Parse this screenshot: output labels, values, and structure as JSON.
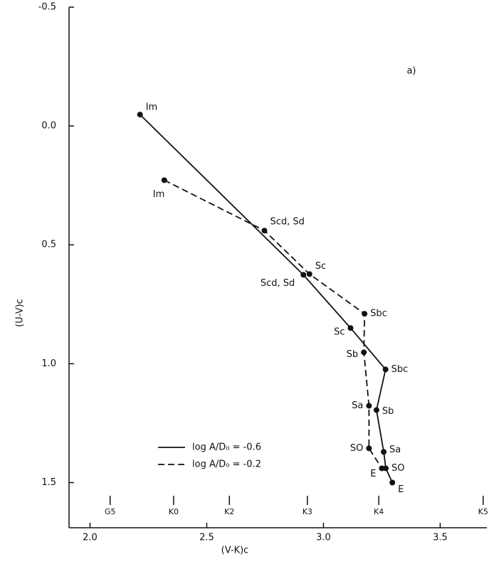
{
  "chart_data": {
    "type": "line",
    "annotation": "a)",
    "x_label": "(V-K)c",
    "y_label": "(U-V)c",
    "xlim": [
      1.91,
      3.7
    ],
    "ylim": [
      -0.5,
      1.69
    ],
    "y_inverted": true,
    "xticks": [
      {
        "value": 2.0,
        "label": "2.0"
      },
      2.5,
      {
        "value": 3.0,
        "label": "3.0"
      },
      3.5
    ],
    "yticks": [
      -0.5,
      {
        "value": 0.0,
        "label": "0.0"
      },
      0.5,
      {
        "value": 1.0,
        "label": "1.0"
      },
      1.5
    ],
    "spectral_ticks": [
      {
        "value": 2.086,
        "label": "G5"
      },
      {
        "value": 2.358,
        "label": "K0"
      },
      {
        "value": 2.597,
        "label": "K2"
      },
      {
        "value": 2.931,
        "label": "K3"
      },
      {
        "value": 3.237,
        "label": "K4"
      },
      {
        "value": 3.684,
        "label": "K5"
      }
    ],
    "series": [
      {
        "name": "log A/D₀ = -0.6",
        "color": "#111111",
        "dashed": false,
        "x": [
          2.214,
          2.914,
          3.116,
          3.266,
          3.227,
          3.258,
          3.267,
          3.295
        ],
        "values": [
          -0.048,
          0.626,
          0.85,
          1.024,
          1.195,
          1.371,
          1.44,
          1.5
        ],
        "point_labels": [
          "Im",
          "Scd, Sd",
          "Sc",
          "Sbc",
          "Sb",
          "Sa",
          "SO",
          "E"
        ]
      },
      {
        "name": "log A/D₀ = -0.2",
        "color": "#111111",
        "dashed": true,
        "x": [
          2.318,
          2.747,
          2.94,
          3.176,
          3.173,
          3.195,
          3.195,
          3.25
        ],
        "values": [
          0.228,
          0.44,
          0.623,
          0.79,
          0.952,
          1.177,
          1.356,
          1.44
        ],
        "point_labels": [
          "Im",
          "Scd, Sd",
          "Sc",
          "Sbc",
          "Sb",
          "Sa",
          "SO",
          "E"
        ]
      }
    ]
  }
}
